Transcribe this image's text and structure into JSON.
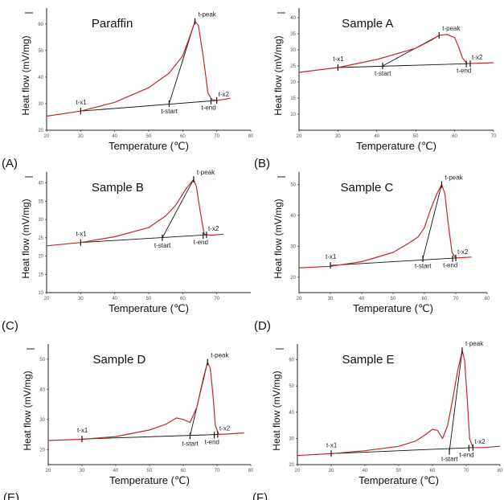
{
  "chart_data": [
    {
      "type": "line",
      "panel_label": "(A)",
      "title": "Paraffin",
      "xlabel": "Temperature (℃)",
      "ylabel": "Heat flow (mV/mg)",
      "xlim": [
        20,
        80
      ],
      "ylim": [
        20,
        66
      ],
      "xticks": [
        20,
        30,
        40,
        50,
        60,
        70,
        80
      ],
      "yticks": [
        20,
        30,
        40,
        50,
        60
      ],
      "curve_color": "#c0292b",
      "curve": [
        [
          20,
          25.3
        ],
        [
          30,
          27.2
        ],
        [
          40,
          30.5
        ],
        [
          50,
          36
        ],
        [
          56,
          41.5
        ],
        [
          60,
          48
        ],
        [
          62,
          55
        ],
        [
          63.6,
          61
        ],
        [
          64.6,
          59.5
        ],
        [
          66,
          48
        ],
        [
          67.4,
          34
        ],
        [
          68.5,
          31.6
        ],
        [
          70,
          31.2
        ],
        [
          72,
          31.6
        ],
        [
          74,
          32
        ]
      ],
      "baseline": [
        [
          30,
          27.2
        ],
        [
          70,
          31.2
        ]
      ],
      "tangent": [
        [
          56,
          30
        ],
        [
          63.6,
          61
        ]
      ],
      "annotations": [
        {
          "label": "t-x1",
          "x": 30,
          "y": 27.2
        },
        {
          "label": "t-start",
          "x": 56,
          "y": 30
        },
        {
          "label": "t-peak",
          "x": 63.6,
          "y": 61
        },
        {
          "label": "t-end",
          "x": 68.3,
          "y": 31
        },
        {
          "label": "t-x2",
          "x": 70,
          "y": 31.2
        }
      ]
    },
    {
      "type": "line",
      "panel_label": "(B)",
      "title": "Sample A",
      "xlabel": "Temperature (℃)",
      "ylabel": "Heat flow (mV/mg)",
      "xlim": [
        20,
        70
      ],
      "ylim": [
        5,
        43
      ],
      "xticks": [
        20,
        30,
        40,
        50,
        60,
        70
      ],
      "yticks": [
        10,
        15,
        20,
        25,
        30,
        35,
        40
      ],
      "curve_color": "#c0292b",
      "curve": [
        [
          20,
          23
        ],
        [
          30,
          24.5
        ],
        [
          40,
          27
        ],
        [
          50,
          30.5
        ],
        [
          54,
          33
        ],
        [
          56,
          34.5
        ],
        [
          58,
          34.8
        ],
        [
          60,
          33.8
        ],
        [
          61,
          31
        ],
        [
          62,
          27.5
        ],
        [
          63.2,
          25.7
        ],
        [
          65,
          25.8
        ],
        [
          70,
          26
        ]
      ],
      "baseline": [
        [
          30,
          24.5
        ],
        [
          63.5,
          25.7
        ]
      ],
      "tangent": [
        [
          41.5,
          25
        ],
        [
          56,
          34.5
        ]
      ],
      "annotations": [
        {
          "label": "t-x1",
          "x": 30,
          "y": 24.5
        },
        {
          "label": "t-start",
          "x": 41.5,
          "y": 25
        },
        {
          "label": "t-peak",
          "x": 56,
          "y": 34.5
        },
        {
          "label": "t-end",
          "x": 63,
          "y": 25.6
        },
        {
          "label": "t-x2",
          "x": 64,
          "y": 25.7
        }
      ]
    },
    {
      "type": "line",
      "panel_label": "(C)",
      "title": "Sample B",
      "xlabel": "Temperature (℃)",
      "ylabel": "Heat flow (mV/mg)",
      "xlim": [
        20,
        80
      ],
      "ylim": [
        10,
        43
      ],
      "xticks": [
        20,
        30,
        40,
        50,
        60,
        70
      ],
      "yticks": [
        10,
        15,
        20,
        25,
        30,
        35,
        40
      ],
      "curve_color": "#c0292b",
      "curve": [
        [
          20,
          22.8
        ],
        [
          30,
          23.7
        ],
        [
          40,
          25.3
        ],
        [
          50,
          27.8
        ],
        [
          55,
          31
        ],
        [
          58,
          34
        ],
        [
          61,
          38.5
        ],
        [
          63.2,
          41
        ],
        [
          64,
          39
        ],
        [
          65,
          33
        ],
        [
          66.3,
          26
        ],
        [
          68,
          25.7
        ],
        [
          72,
          26
        ]
      ],
      "baseline": [
        [
          30,
          23.7
        ],
        [
          67,
          25.8
        ]
      ],
      "tangent": [
        [
          54,
          25
        ],
        [
          63.2,
          41
        ]
      ],
      "annotations": [
        {
          "label": "t-x1",
          "x": 30,
          "y": 23.7
        },
        {
          "label": "t-start",
          "x": 54,
          "y": 25
        },
        {
          "label": "t-peak",
          "x": 63.2,
          "y": 41
        },
        {
          "label": "t-end",
          "x": 66,
          "y": 25.6
        },
        {
          "label": "t-x2",
          "x": 67,
          "y": 25.8
        }
      ]
    },
    {
      "type": "line",
      "panel_label": "(D)",
      "title": "Sample C",
      "xlabel": "Temperature (℃)",
      "ylabel": "Heat flow (mV/mg)",
      "xlim": [
        20,
        80
      ],
      "ylim": [
        15,
        54
      ],
      "xticks": [
        20,
        30,
        40,
        50,
        60,
        70,
        80
      ],
      "yticks": [
        20,
        30,
        40,
        50
      ],
      "curve_color": "#c0292b",
      "curve": [
        [
          20,
          23
        ],
        [
          30,
          23.5
        ],
        [
          40,
          25
        ],
        [
          50,
          28
        ],
        [
          55,
          31
        ],
        [
          58,
          33
        ],
        [
          60,
          36
        ],
        [
          62,
          42
        ],
        [
          64,
          47
        ],
        [
          65.5,
          50
        ],
        [
          66.5,
          47
        ],
        [
          67.5,
          38
        ],
        [
          68.8,
          28
        ],
        [
          70,
          26.2
        ],
        [
          75,
          26.5
        ]
      ],
      "baseline": [
        [
          30,
          23.8
        ],
        [
          70,
          26.2
        ]
      ],
      "tangent": [
        [
          59.5,
          26
        ],
        [
          65.5,
          50
        ]
      ],
      "annotations": [
        {
          "label": "t-x1",
          "x": 30,
          "y": 23.8
        },
        {
          "label": "t-start",
          "x": 59.5,
          "y": 26
        },
        {
          "label": "t-peak",
          "x": 65.5,
          "y": 50
        },
        {
          "label": "t-end",
          "x": 69,
          "y": 26
        },
        {
          "label": "t-x2",
          "x": 70,
          "y": 26.2
        }
      ]
    },
    {
      "type": "line",
      "panel_label": "(E)",
      "title": "Sample D",
      "xlabel": "Temperature (℃)",
      "ylabel": "Heat flow (mV/mg)",
      "xlim": [
        20,
        80
      ],
      "ylim": [
        15,
        55
      ],
      "xticks": [
        20,
        30,
        40,
        50,
        60,
        70,
        80
      ],
      "yticks": [
        20,
        30,
        40,
        50
      ],
      "curve_color": "#c0292b",
      "curve": [
        [
          20,
          23
        ],
        [
          30,
          23.4
        ],
        [
          40,
          24.3
        ],
        [
          50,
          26.5
        ],
        [
          55,
          28.5
        ],
        [
          58,
          30.5
        ],
        [
          60,
          30
        ],
        [
          62,
          29
        ],
        [
          64,
          34
        ],
        [
          66,
          44
        ],
        [
          67.2,
          49
        ],
        [
          68,
          47
        ],
        [
          68.8,
          38
        ],
        [
          69.5,
          28
        ],
        [
          70.5,
          25
        ],
        [
          75,
          25.3
        ],
        [
          78,
          25.5
        ]
      ],
      "baseline": [
        [
          30,
          23.5
        ],
        [
          70,
          25
        ]
      ],
      "tangent": [
        [
          62,
          24.5
        ],
        [
          67.2,
          49
        ]
      ],
      "annotations": [
        {
          "label": "t-x1",
          "x": 30,
          "y": 23.5
        },
        {
          "label": "t-start",
          "x": 62,
          "y": 24.5
        },
        {
          "label": "t-peak",
          "x": 67.2,
          "y": 49
        },
        {
          "label": "t-end",
          "x": 69.2,
          "y": 24.8
        },
        {
          "label": "t-x2",
          "x": 70.2,
          "y": 25
        }
      ]
    },
    {
      "type": "line",
      "panel_label": "(F)",
      "title": "Sample E",
      "xlabel": "Temperature (℃)",
      "ylabel": "Heat flow (mV/mg)",
      "xlim": [
        20,
        80
      ],
      "ylim": [
        20,
        66
      ],
      "xticks": [
        20,
        30,
        40,
        50,
        60,
        70,
        80
      ],
      "yticks": [
        20,
        30,
        40,
        50,
        60
      ],
      "curve_color": "#c0292b",
      "curve": [
        [
          20,
          23.5
        ],
        [
          30,
          24.2
        ],
        [
          40,
          25.3
        ],
        [
          50,
          27
        ],
        [
          55,
          29
        ],
        [
          58,
          31.5
        ],
        [
          60,
          33.5
        ],
        [
          61.5,
          33
        ],
        [
          63,
          30
        ],
        [
          64.5,
          35
        ],
        [
          66,
          45
        ],
        [
          67.5,
          56
        ],
        [
          68.8,
          63.5
        ],
        [
          69.5,
          60
        ],
        [
          70.3,
          45
        ],
        [
          71,
          30
        ],
        [
          72,
          26.5
        ],
        [
          75,
          26.5
        ],
        [
          80,
          27
        ]
      ],
      "baseline": [
        [
          30,
          24.2
        ],
        [
          72,
          26.5
        ]
      ],
      "tangent": [
        [
          65,
          25
        ],
        [
          68.8,
          63.5
        ]
      ],
      "annotations": [
        {
          "label": "t-x1",
          "x": 30,
          "y": 24.2
        },
        {
          "label": "t-start",
          "x": 65,
          "y": 25
        },
        {
          "label": "t-peak",
          "x": 68.8,
          "y": 63.5
        },
        {
          "label": "t-end",
          "x": 70.8,
          "y": 26.3
        },
        {
          "label": "t-x2",
          "x": 72,
          "y": 26.5
        }
      ]
    }
  ]
}
